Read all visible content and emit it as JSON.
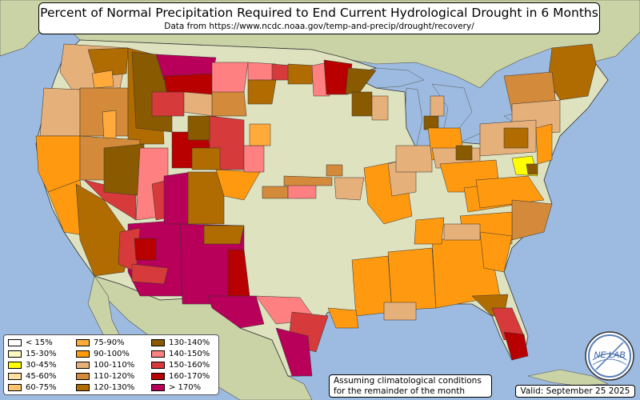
{
  "title": "Percent of Normal Precipitation Required to End Current Hydrological Drought in 6 Months",
  "subtitle": "Data from https://www.ncdc.noaa.gov/temp-and-precip/drought/recovery/",
  "note_line1": "Assuming climatological conditions",
  "note_line2": "for the remainder of the month",
  "valid": "Valid: September 25 2025",
  "logo_text": "NE LAB",
  "colors": {
    "ocean": "#9dbbe0",
    "land_outside": "#c9d3a6",
    "land_us": "#dfe2bf",
    "border": "#333333"
  },
  "legend": [
    {
      "label": "< 15%",
      "color": "#ffffff"
    },
    {
      "label": "15-30%",
      "color": "#fff7c2"
    },
    {
      "label": "30-45%",
      "color": "#ffff00"
    },
    {
      "label": "45-60%",
      "color": "#ffe0a0"
    },
    {
      "label": "60-75%",
      "color": "#ffc56e"
    },
    {
      "label": "75-90%",
      "color": "#ffaa3a"
    },
    {
      "label": "90-100%",
      "color": "#ff9a10"
    },
    {
      "label": "100-110%",
      "color": "#e6b07a"
    },
    {
      "label": "110-120%",
      "color": "#d38a3a"
    },
    {
      "label": "120-130%",
      "color": "#b06c00"
    },
    {
      "label": "130-140%",
      "color": "#8a5a00"
    },
    {
      "label": "140-150%",
      "color": "#ff8080"
    },
    {
      "label": "150-160%",
      "color": "#d63a3a"
    },
    {
      "label": "160-170%",
      "color": "#b80000"
    },
    {
      "label": "> 170%",
      "color": "#b8005a"
    }
  ]
}
